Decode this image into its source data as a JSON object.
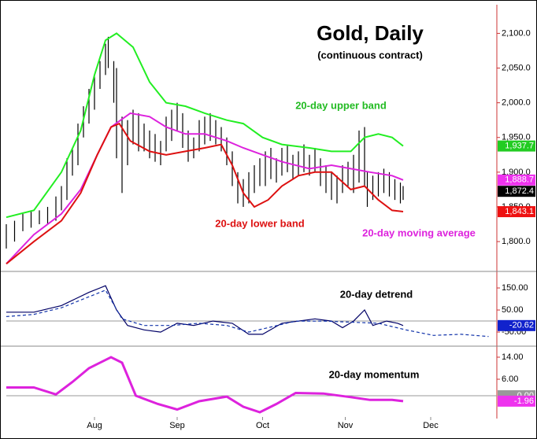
{
  "chart_data": [
    {
      "type": "ohlc",
      "title": "Gold, Daily",
      "subtitle": "(continuous contract)",
      "xlim": [
        0,
        178
      ],
      "ylim": [
        1757,
        2139
      ],
      "yticks": [
        {
          "value": 2100,
          "label": "2,100.0"
        },
        {
          "value": 2050,
          "label": "2,050.0"
        },
        {
          "value": 2000,
          "label": "2,000.0"
        },
        {
          "value": 1950,
          "label": "1,950.0"
        },
        {
          "value": 1900,
          "label": "1,900.0"
        },
        {
          "value": 1850,
          "label": "1,850.0"
        },
        {
          "value": 1800,
          "label": "1,800.0"
        }
      ],
      "bars": {
        "color": "#000000",
        "x": [
          0,
          3,
          6,
          9,
          12,
          15,
          18,
          20,
          22,
          24,
          26,
          28,
          30,
          32,
          34,
          36,
          37,
          39,
          40,
          42,
          44,
          46,
          48,
          50,
          52,
          54,
          56,
          58,
          60,
          62,
          64,
          66,
          68,
          70,
          72,
          74,
          76,
          78,
          80,
          82,
          84,
          86,
          88,
          90,
          92,
          94,
          96,
          98,
          100,
          102,
          104,
          106,
          108,
          110,
          112,
          114,
          116,
          118,
          120,
          122,
          124,
          126,
          128,
          130,
          131,
          133,
          135,
          137,
          139,
          141,
          143,
          144
        ],
        "high": [
          1825,
          1830,
          1840,
          1845,
          1845,
          1850,
          1865,
          1880,
          1920,
          1935,
          1970,
          1995,
          2020,
          2040,
          2060,
          2085,
          2095,
          2060,
          2050,
          1980,
          1975,
          1990,
          1985,
          1970,
          1960,
          1955,
          1945,
          1980,
          1990,
          2000,
          1985,
          1960,
          1950,
          1975,
          1980,
          1985,
          1975,
          1965,
          1950,
          1930,
          1900,
          1890,
          1900,
          1910,
          1920,
          1930,
          1935,
          1920,
          1935,
          1940,
          1925,
          1930,
          1940,
          1925,
          1935,
          1920,
          1910,
          1900,
          1895,
          1910,
          1915,
          1925,
          1960,
          1965,
          1900,
          1895,
          1900,
          1905,
          1900,
          1890,
          1885,
          1880
        ],
        "low": [
          1790,
          1800,
          1815,
          1820,
          1825,
          1825,
          1830,
          1845,
          1860,
          1895,
          1910,
          1950,
          1970,
          1990,
          2020,
          2040,
          2050,
          2000,
          1920,
          1870,
          1910,
          1940,
          1930,
          1930,
          1920,
          1915,
          1910,
          1930,
          1945,
          1960,
          1935,
          1915,
          1920,
          1930,
          1940,
          1945,
          1940,
          1930,
          1910,
          1880,
          1855,
          1850,
          1855,
          1870,
          1880,
          1880,
          1890,
          1885,
          1895,
          1900,
          1890,
          1895,
          1900,
          1895,
          1900,
          1880,
          1870,
          1860,
          1855,
          1870,
          1880,
          1870,
          1885,
          1880,
          1850,
          1860,
          1865,
          1870,
          1865,
          1860,
          1855,
          1860
        ]
      },
      "series": [
        {
          "color": "#22ee22",
          "x": [
            0,
            10,
            20,
            27,
            32,
            36,
            40,
            46,
            52,
            58,
            65,
            72,
            80,
            86,
            93,
            100,
            110,
            118,
            125,
            130,
            135,
            140,
            144
          ],
          "values": [
            1835,
            1845,
            1900,
            1960,
            2040,
            2090,
            2100,
            2080,
            2030,
            2000,
            1995,
            1985,
            1975,
            1970,
            1950,
            1940,
            1935,
            1930,
            1930,
            1950,
            1955,
            1950,
            1937.7
          ]
        },
        {
          "color": "#dd22dd",
          "x": [
            0,
            10,
            20,
            27,
            33,
            38,
            45,
            52,
            58,
            65,
            72,
            80,
            86,
            93,
            100,
            110,
            118,
            125,
            132,
            140,
            144
          ],
          "values": [
            1768,
            1810,
            1840,
            1875,
            1925,
            1965,
            1985,
            1980,
            1965,
            1955,
            1955,
            1945,
            1935,
            1925,
            1915,
            1905,
            1910,
            1905,
            1900,
            1895,
            1888.7
          ]
        },
        {
          "color": "#dd1111",
          "x": [
            0,
            10,
            20,
            27,
            33,
            38,
            41,
            45,
            52,
            58,
            65,
            72,
            78,
            82,
            86,
            90,
            95,
            100,
            106,
            112,
            118,
            125,
            130,
            135,
            140,
            144
          ],
          "values": [
            1768,
            1800,
            1830,
            1870,
            1925,
            1965,
            1970,
            1945,
            1930,
            1925,
            1930,
            1935,
            1940,
            1910,
            1870,
            1850,
            1860,
            1880,
            1895,
            1900,
            1900,
            1875,
            1880,
            1860,
            1845,
            1843.1
          ]
        }
      ],
      "annotations": [
        {
          "text": "20-day upper band",
          "color": "#22bb22"
        },
        {
          "text": "20-day lower band",
          "color": "#dd1111"
        },
        {
          "text": "20-day moving average",
          "color": "#dd22dd"
        }
      ],
      "last_labels": [
        {
          "value": 1937.7,
          "label": "1,937.7",
          "color": "#22cc22"
        },
        {
          "value": 1888.7,
          "label": "1,888.7",
          "color": "#ee33ee"
        },
        {
          "value": 1872.4,
          "label": "1,872.4",
          "color": "#000000"
        },
        {
          "value": 1843.1,
          "label": "1,843.1",
          "color": "#ee1111"
        }
      ]
    },
    {
      "type": "line",
      "xlim": [
        0,
        178
      ],
      "ylim": [
        -114,
        225
      ],
      "yticks": [
        {
          "value": 150,
          "label": "150.00"
        },
        {
          "value": 50,
          "label": "50.00"
        },
        {
          "value": -50,
          "label": "-50.00"
        }
      ],
      "series": [
        {
          "color": "#000066",
          "x": [
            0,
            10,
            20,
            25,
            30,
            36,
            40,
            44,
            50,
            56,
            62,
            68,
            75,
            82,
            88,
            93,
            100,
            106,
            112,
            118,
            122,
            126,
            130,
            133,
            138,
            142,
            144
          ],
          "values": [
            40,
            40,
            70,
            100,
            130,
            160,
            50,
            -20,
            -40,
            -50,
            -10,
            -20,
            0,
            -10,
            -60,
            -60,
            -10,
            0,
            10,
            0,
            -30,
            0,
            50,
            -20,
            0,
            -10,
            -20.62
          ]
        },
        {
          "color": "#1133aa",
          "dashed": true,
          "x": [
            0,
            10,
            20,
            30,
            36,
            42,
            50,
            60,
            70,
            80,
            88,
            95,
            105,
            115,
            125,
            135,
            145,
            155,
            165,
            175
          ],
          "values": [
            20,
            30,
            60,
            110,
            140,
            10,
            -20,
            -20,
            -10,
            -20,
            -50,
            -30,
            0,
            0,
            -5,
            -10,
            -40,
            -65,
            -60,
            -70
          ]
        }
      ],
      "annotations": [
        {
          "text": "20-day detrend",
          "color": "#000000"
        }
      ],
      "last_labels": [
        {
          "value": -20.62,
          "label": "-20.62",
          "color": "#1122cc"
        }
      ]
    },
    {
      "type": "line",
      "xlim": [
        0,
        178
      ],
      "ylim": [
        -7.7,
        18
      ],
      "yticks": [
        {
          "value": 14,
          "label": "14.00"
        },
        {
          "value": 6,
          "label": "6.00"
        }
      ],
      "xticks": [
        {
          "value": 32,
          "label": "Aug"
        },
        {
          "value": 62,
          "label": "Sep"
        },
        {
          "value": 93,
          "label": "Oct"
        },
        {
          "value": 123,
          "label": "Nov"
        },
        {
          "value": 154,
          "label": "Dec"
        }
      ],
      "series": [
        {
          "color": "#dd22dd",
          "x": [
            0,
            10,
            18,
            24,
            30,
            38,
            42,
            47,
            55,
            62,
            70,
            80,
            86,
            92,
            98,
            105,
            115,
            125,
            132,
            140,
            144
          ],
          "values": [
            3,
            3,
            0.5,
            5,
            10,
            14,
            12,
            0,
            -3,
            -5,
            -2,
            -0.3,
            -4,
            -6,
            -3,
            1,
            0.8,
            -0.5,
            -1.5,
            -1.5,
            -1.96
          ]
        }
      ],
      "annotations": [
        {
          "text": "20-day momentum",
          "color": "#000000"
        }
      ],
      "last_labels": [
        {
          "value": 0,
          "label": "0.00",
          "color": "#999999"
        },
        {
          "value": -1.96,
          "label": "-1.96",
          "color": "#ee33ee"
        }
      ]
    }
  ]
}
